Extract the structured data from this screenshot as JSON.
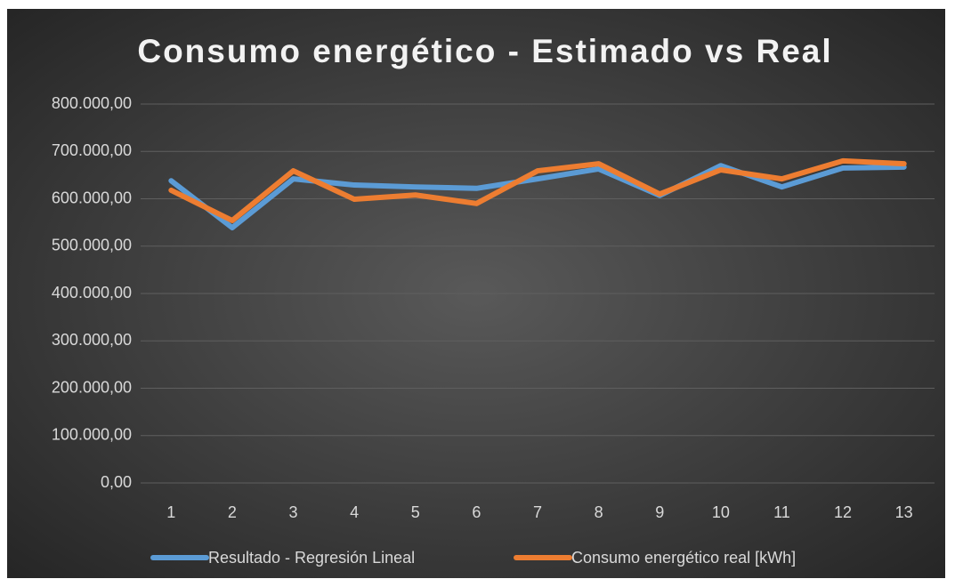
{
  "chart_data": {
    "type": "line",
    "title": "Consumo energético - Estimado vs Real",
    "categories": [
      "1",
      "2",
      "3",
      "4",
      "5",
      "6",
      "7",
      "8",
      "9",
      "10",
      "11",
      "12",
      "13"
    ],
    "series": [
      {
        "name": "Resultado - Regresión Lineal",
        "color": "#5b9bd5",
        "values": [
          638000,
          539000,
          642000,
          629000,
          625000,
          622000,
          642000,
          663000,
          607000,
          670000,
          625000,
          665000,
          667000
        ]
      },
      {
        "name": "Consumo energético real [kWh]",
        "color": "#ed7d31",
        "values": [
          618000,
          554000,
          659000,
          599000,
          608000,
          590000,
          659000,
          674000,
          610000,
          661000,
          642000,
          680000,
          674000
        ]
      }
    ],
    "ylim": [
      0,
      800000
    ],
    "yticks": [
      {
        "value": 0,
        "label": "0,00"
      },
      {
        "value": 100000,
        "label": "100.000,00"
      },
      {
        "value": 200000,
        "label": "200.000,00"
      },
      {
        "value": 300000,
        "label": "300.000,00"
      },
      {
        "value": 400000,
        "label": "400.000,00"
      },
      {
        "value": 500000,
        "label": "500.000,00"
      },
      {
        "value": 600000,
        "label": "600.000,00"
      },
      {
        "value": 700000,
        "label": "700.000,00"
      },
      {
        "value": 800000,
        "label": "800.000,00"
      }
    ],
    "grid": true,
    "legend": "bottom"
  }
}
